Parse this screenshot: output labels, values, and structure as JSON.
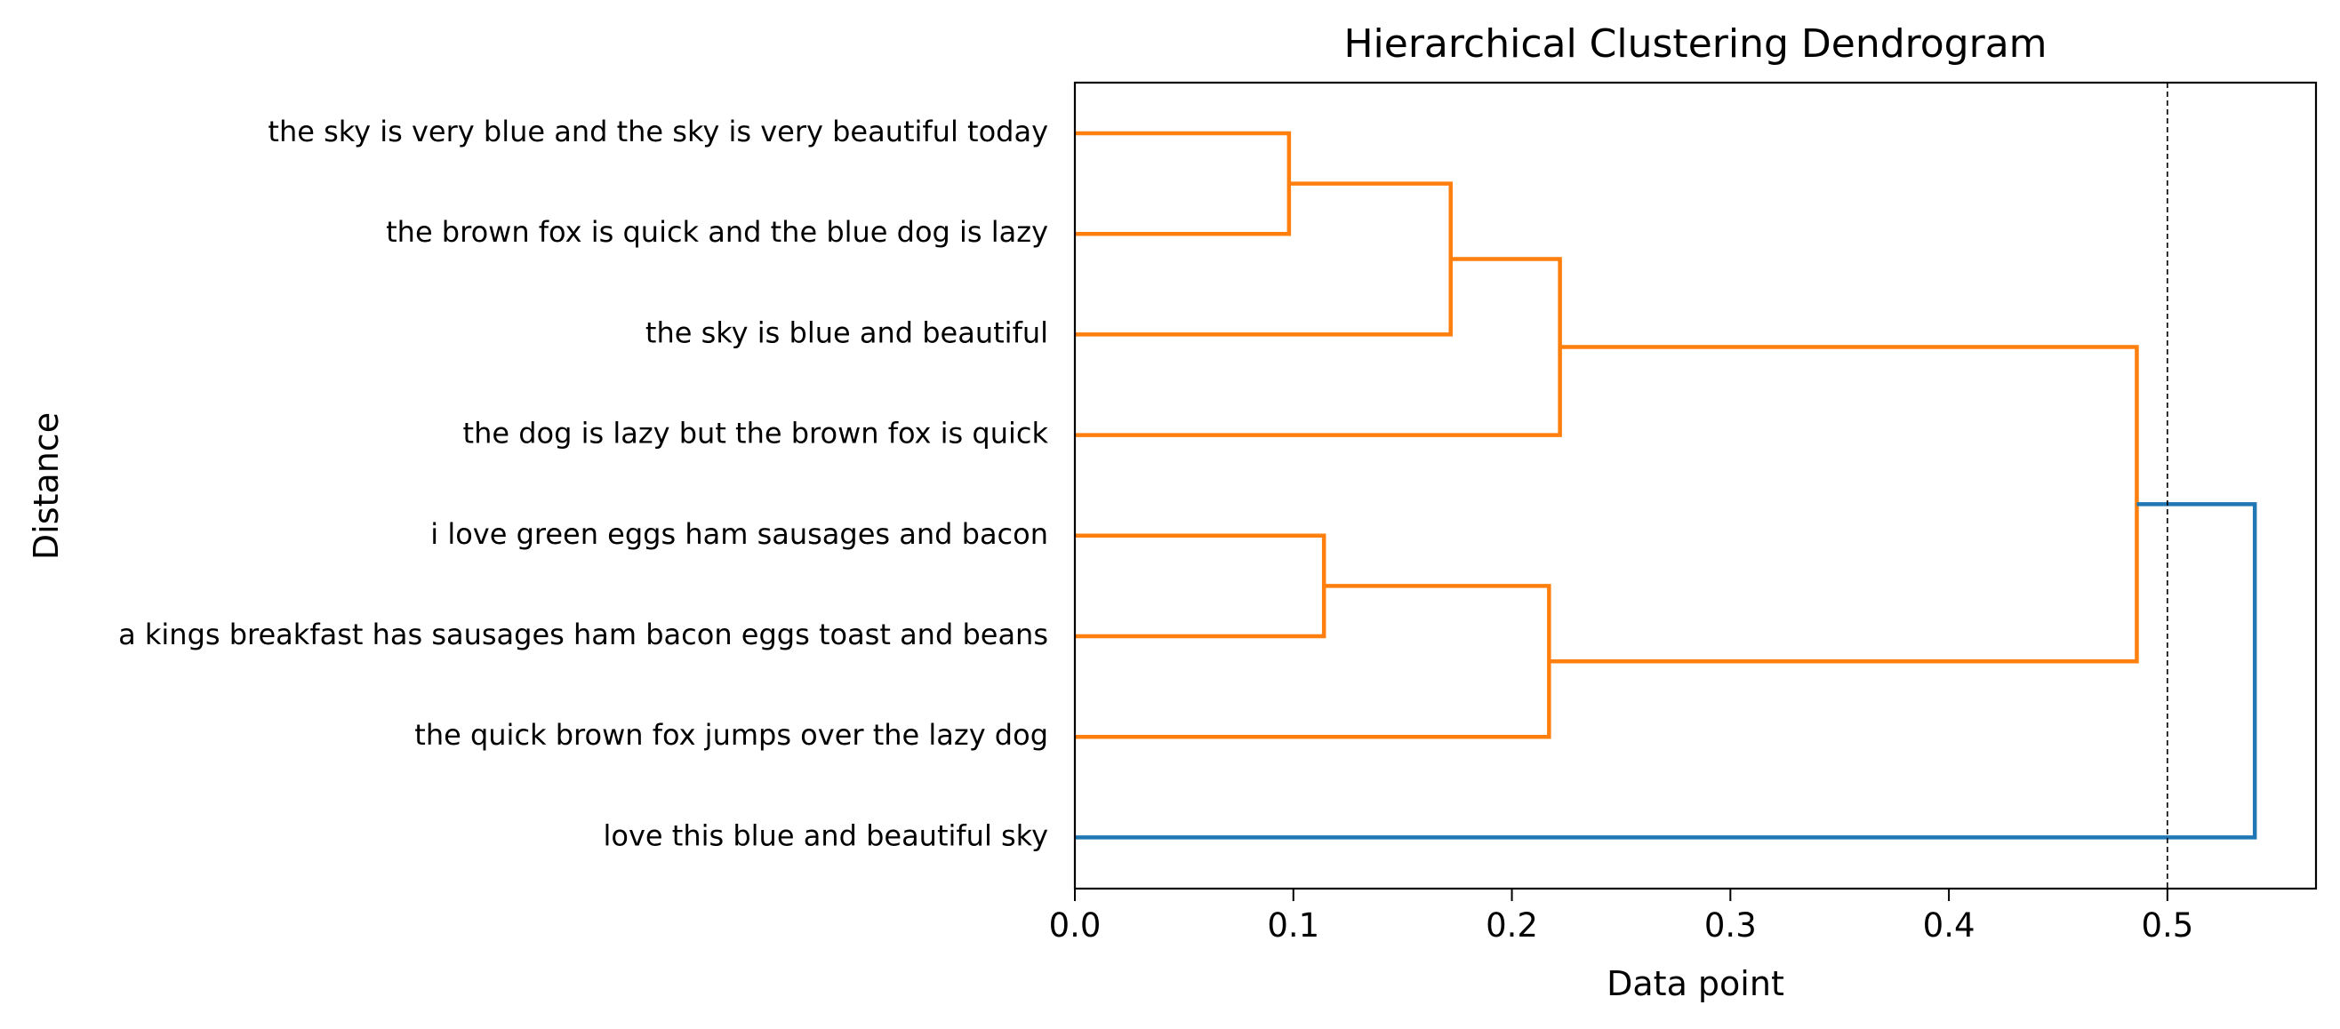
{
  "chart_data": {
    "type": "dendrogram",
    "orientation": "horizontal",
    "title": "Hierarchical Clustering Dendrogram",
    "xlabel": "Data point",
    "ylabel": "Distance",
    "xlim": [
      0,
      0.568
    ],
    "xticks": [
      0.0,
      0.1,
      0.2,
      0.3,
      0.4,
      0.5
    ],
    "xtick_labels": [
      "0.0",
      "0.1",
      "0.2",
      "0.3",
      "0.4",
      "0.5"
    ],
    "leaves": [
      "the sky is very blue and the sky is very beautiful today",
      "the brown fox is quick and the blue dog is lazy",
      "the sky is blue and beautiful",
      "the dog is lazy but the brown fox is quick",
      "i love green eggs ham sausages and bacon",
      "a kings breakfast has sausages ham bacon eggs toast and beans",
      "the quick brown fox jumps over the lazy dog",
      "love this blue and beautiful sky"
    ],
    "merges": [
      {
        "a": "leaf:0",
        "b": "leaf:1",
        "distance": 0.098,
        "color": "#ff7f0e"
      },
      {
        "a": "node:0",
        "b": "leaf:2",
        "distance": 0.172,
        "color": "#ff7f0e"
      },
      {
        "a": "node:1",
        "b": "leaf:3",
        "distance": 0.222,
        "color": "#ff7f0e"
      },
      {
        "a": "leaf:4",
        "b": "leaf:5",
        "distance": 0.114,
        "color": "#ff7f0e"
      },
      {
        "a": "node:3",
        "b": "leaf:6",
        "distance": 0.217,
        "color": "#ff7f0e"
      },
      {
        "a": "node:2",
        "b": "node:4",
        "distance": 0.486,
        "color": "#ff7f0e"
      },
      {
        "a": "node:5",
        "b": "leaf:7",
        "distance": 0.54,
        "color": "#1f77b4"
      }
    ],
    "threshold": 0.5,
    "threshold_style": "dashed",
    "colors": {
      "cluster": "#ff7f0e",
      "above_threshold": "#1f77b4",
      "threshold_line": "#000000"
    },
    "grid": false
  }
}
